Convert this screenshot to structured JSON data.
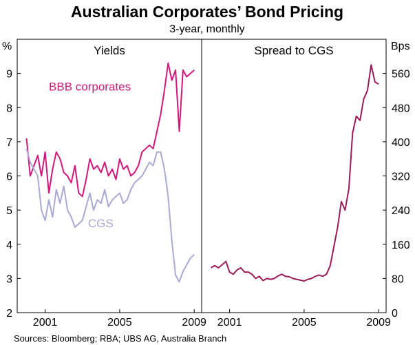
{
  "title": "Australian Corporates’ Bond Pricing",
  "subtitle": "3-year, monthly",
  "source": "Sources: Bloomberg; RBA; UBS AG, Australia Branch",
  "colors": {
    "bbb": "#d0177a",
    "cgs": "#a9a9d6",
    "spread": "#9b1b5a",
    "frame": "#000000"
  },
  "chart_data": [
    {
      "type": "line",
      "panel_title": "Yields",
      "yunit": "%",
      "ylim": [
        2,
        10
      ],
      "yticks": [
        2,
        3,
        4,
        5,
        6,
        7,
        8,
        9
      ],
      "xlim": [
        1999.5,
        2009.4
      ],
      "xticks": [
        2001,
        2005,
        2009
      ],
      "xticklabels": [
        "2001",
        "2005",
        "2009"
      ],
      "series": [
        {
          "name": "BBB corporates",
          "color": "#d0177a",
          "x": [
            2000.0,
            2000.2,
            2000.4,
            2000.6,
            2000.8,
            2001.0,
            2001.2,
            2001.4,
            2001.6,
            2001.8,
            2002.0,
            2002.2,
            2002.4,
            2002.6,
            2002.8,
            2003.0,
            2003.2,
            2003.4,
            2003.6,
            2003.8,
            2004.0,
            2004.2,
            2004.4,
            2004.6,
            2004.8,
            2005.0,
            2005.2,
            2005.4,
            2005.6,
            2005.8,
            2006.0,
            2006.2,
            2006.4,
            2006.6,
            2006.8,
            2007.0,
            2007.2,
            2007.4,
            2007.6,
            2007.8,
            2008.0,
            2008.2,
            2008.4,
            2008.6,
            2008.8,
            2009.0
          ],
          "values": [
            7.1,
            6.0,
            6.3,
            6.6,
            6.0,
            6.7,
            5.5,
            6.2,
            6.7,
            6.5,
            6.1,
            6.0,
            5.8,
            6.3,
            5.5,
            5.4,
            5.9,
            6.5,
            6.2,
            6.3,
            6.1,
            6.4,
            6.0,
            6.2,
            5.9,
            6.5,
            6.2,
            6.3,
            6.0,
            6.1,
            6.3,
            6.7,
            6.8,
            6.9,
            6.8,
            7.3,
            7.8,
            8.5,
            9.3,
            8.8,
            9.1,
            7.3,
            9.1,
            8.9,
            9.0,
            9.1
          ]
        },
        {
          "name": "CGS",
          "color": "#a9a9d6",
          "x": [
            2000.0,
            2000.2,
            2000.4,
            2000.6,
            2000.8,
            2001.0,
            2001.2,
            2001.4,
            2001.6,
            2001.8,
            2002.0,
            2002.2,
            2002.4,
            2002.6,
            2002.8,
            2003.0,
            2003.2,
            2003.4,
            2003.6,
            2003.8,
            2004.0,
            2004.2,
            2004.4,
            2004.6,
            2004.8,
            2005.0,
            2005.2,
            2005.4,
            2005.6,
            2005.8,
            2006.0,
            2006.2,
            2006.4,
            2006.6,
            2006.8,
            2007.0,
            2007.2,
            2007.4,
            2007.6,
            2007.8,
            2008.0,
            2008.2,
            2008.4,
            2008.6,
            2008.8,
            2009.0
          ],
          "values": [
            6.8,
            6.4,
            6.2,
            6.0,
            5.0,
            4.7,
            5.3,
            4.8,
            5.6,
            5.2,
            5.7,
            5.0,
            4.8,
            4.5,
            4.6,
            4.7,
            5.1,
            5.5,
            5.0,
            5.3,
            5.2,
            5.6,
            5.1,
            5.3,
            5.4,
            5.5,
            5.2,
            5.3,
            5.6,
            5.8,
            5.9,
            6.0,
            6.2,
            6.4,
            6.3,
            6.7,
            6.7,
            6.2,
            5.4,
            4.1,
            3.1,
            2.9,
            3.2,
            3.4,
            3.6,
            3.7
          ]
        }
      ],
      "annotations": [
        {
          "text": "BBB corporates",
          "x": 2001.2,
          "y": 8.5
        },
        {
          "text": "CGS",
          "x": 2003.3,
          "y": 4.5
        }
      ]
    },
    {
      "type": "line",
      "panel_title": "Spread to CGS",
      "yunit": "Bps",
      "ylim": [
        0,
        640
      ],
      "yticks": [
        0,
        80,
        160,
        240,
        320,
        400,
        480,
        560
      ],
      "xlim": [
        1999.5,
        2009.4
      ],
      "xticks": [
        2001,
        2005,
        2009
      ],
      "xticklabels": [
        "2001",
        "2005",
        "2009"
      ],
      "series": [
        {
          "name": "Spread to CGS",
          "color": "#9b1b5a",
          "x": [
            2000.0,
            2000.2,
            2000.4,
            2000.6,
            2000.8,
            2001.0,
            2001.2,
            2001.4,
            2001.6,
            2001.8,
            2002.0,
            2002.2,
            2002.4,
            2002.6,
            2002.8,
            2003.0,
            2003.2,
            2003.4,
            2003.6,
            2003.8,
            2004.0,
            2004.2,
            2004.4,
            2004.6,
            2004.8,
            2005.0,
            2005.2,
            2005.4,
            2005.6,
            2005.8,
            2006.0,
            2006.2,
            2006.4,
            2006.6,
            2006.8,
            2007.0,
            2007.2,
            2007.4,
            2007.6,
            2007.8,
            2008.0,
            2008.2,
            2008.4,
            2008.6,
            2008.8,
            2009.0
          ],
          "values": [
            105,
            110,
            105,
            112,
            120,
            95,
            90,
            100,
            105,
            95,
            95,
            90,
            80,
            85,
            75,
            80,
            78,
            80,
            86,
            90,
            85,
            84,
            80,
            78,
            76,
            74,
            78,
            80,
            85,
            88,
            85,
            90,
            110,
            155,
            200,
            260,
            240,
            290,
            420,
            460,
            450,
            500,
            520,
            580,
            540,
            535
          ]
        }
      ]
    }
  ]
}
